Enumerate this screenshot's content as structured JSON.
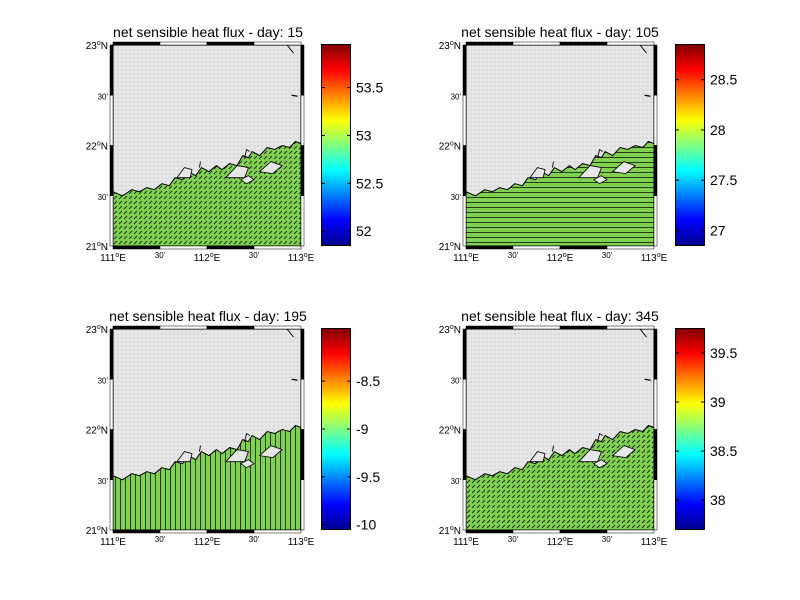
{
  "map_panels": [
    {
      "title": "net sensible heat flux - day: 15",
      "colorbar": {
        "min": 51.85,
        "max": 53.95,
        "ticks": [
          "53.5",
          "53",
          "52.5",
          "52"
        ],
        "tick_values": [
          53.5,
          53,
          52.5,
          52
        ]
      },
      "field_color": "#7fd14f",
      "arrow_pattern": "diagonal-short"
    },
    {
      "title": "net sensible heat flux - day: 105",
      "colorbar": {
        "min": 26.85,
        "max": 28.85,
        "ticks": [
          "28.5",
          "28",
          "27.5",
          "27"
        ],
        "tick_values": [
          28.5,
          28,
          27.5,
          27
        ]
      },
      "field_color": "#7fd14f",
      "arrow_pattern": "horizontal"
    },
    {
      "title": "net sensible heat flux - day: 195",
      "colorbar": {
        "min": -10.05,
        "max": -7.95,
        "ticks": [
          "-8.5",
          "-9",
          "-9.5",
          "-10"
        ],
        "tick_values": [
          -8.5,
          -9,
          -9.5,
          -10
        ]
      },
      "field_color": "#7fd14f",
      "arrow_pattern": "vertical"
    },
    {
      "title": "net sensible heat flux - day: 345",
      "colorbar": {
        "min": 37.7,
        "max": 39.75,
        "ticks": [
          "39.5",
          "39",
          "38.5",
          "38"
        ],
        "tick_values": [
          39.5,
          39,
          38.5,
          38
        ]
      },
      "field_color": "#7fd14f",
      "arrow_pattern": "diagonal-short"
    }
  ],
  "axes": {
    "y_labels": [
      {
        "text": "23°N",
        "main": "23",
        "deg": "o",
        "hem": "N"
      },
      {
        "text": "30'",
        "main": "30'",
        "deg": "",
        "hem": ""
      },
      {
        "text": "22°N",
        "main": "22",
        "deg": "o",
        "hem": "N"
      },
      {
        "text": "30'",
        "main": "30'",
        "deg": "",
        "hem": ""
      },
      {
        "text": "21°N",
        "main": "21",
        "deg": "o",
        "hem": "N"
      }
    ],
    "x_labels": [
      {
        "text": "111°E",
        "main": "111",
        "deg": "o",
        "hem": "E"
      },
      {
        "text": "30'",
        "main": "30'",
        "deg": "",
        "hem": ""
      },
      {
        "text": "112°E",
        "main": "112",
        "deg": "o",
        "hem": "E"
      },
      {
        "text": "30'",
        "main": "30'",
        "deg": "",
        "hem": ""
      },
      {
        "text": "113°E",
        "main": "113",
        "deg": "o",
        "hem": "E"
      }
    ]
  },
  "colors": {
    "land_gray": "#e6e6e6",
    "grid_dot": "#b8b8b8",
    "sea_green": "#7fd14f",
    "colormap": [
      "#00008f",
      "#0000ff",
      "#0080ff",
      "#00ffff",
      "#80ff80",
      "#ffff00",
      "#ff8000",
      "#ff0000",
      "#800000"
    ]
  }
}
